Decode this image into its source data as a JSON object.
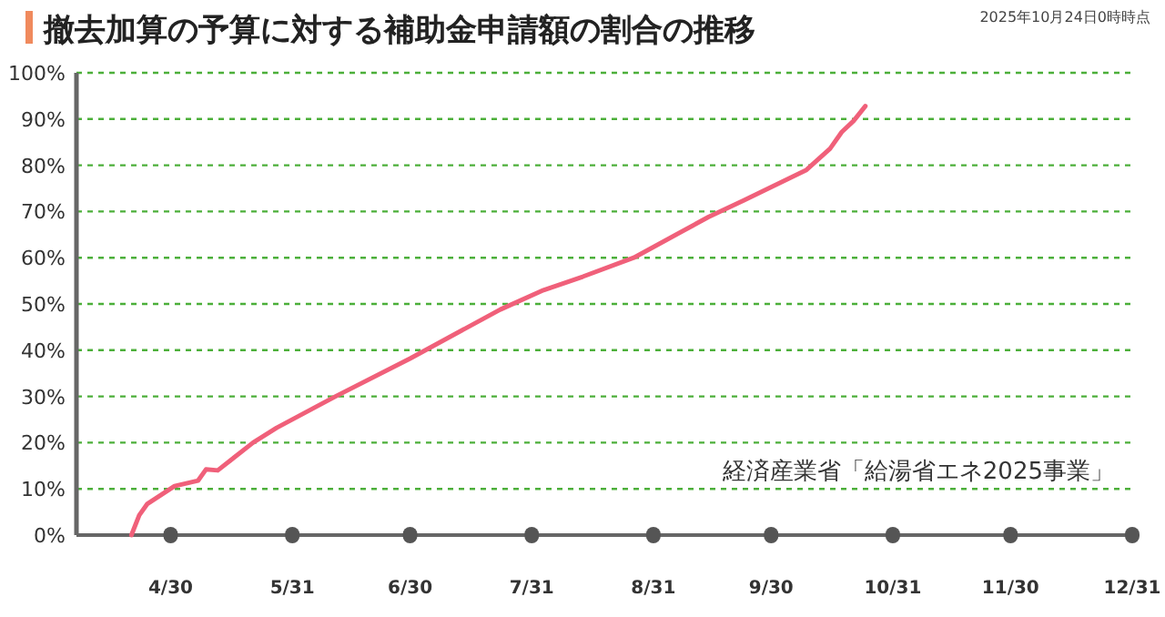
{
  "chart_data": {
    "type": "line",
    "title": "撤去加算の予算に対する補助金申請額の割合の推移",
    "annotations": [
      "2025年10月24日0時時点",
      "経済産業省「給湯省エネ2025事業」"
    ],
    "series": [
      {
        "color": "#f0607a",
        "x": [
          "2025-04-20",
          "2025-04-22",
          "2025-04-24",
          "2025-05-01",
          "2025-05-07",
          "2025-05-09",
          "2025-05-12",
          "2025-05-21",
          "2025-05-27",
          "2025-06-11",
          "2025-06-30",
          "2025-07-23",
          "2025-08-03",
          "2025-08-13",
          "2025-08-26",
          "2025-09-14",
          "2025-09-23",
          "2025-10-09",
          "2025-10-15",
          "2025-10-18",
          "2025-10-21",
          "2025-10-24"
        ],
        "values": [
          0,
          4.3,
          6.7,
          10.6,
          11.8,
          14.2,
          14,
          20,
          23.2,
          30,
          38.2,
          48.8,
          53,
          55.9,
          60,
          68.8,
          72.4,
          79,
          83.6,
          87.2,
          89.6,
          92.8
        ]
      }
    ],
    "xlim": [
      "2025-04-06",
      "2025-12-31"
    ],
    "xticks": [
      {
        "value": "2025-04-30",
        "label": "4/30"
      },
      {
        "value": "2025-05-31",
        "label": "5/31"
      },
      {
        "value": "2025-06-30",
        "label": "6/30"
      },
      {
        "value": "2025-07-31",
        "label": "7/31"
      },
      {
        "value": "2025-08-31",
        "label": "8/31"
      },
      {
        "value": "2025-09-30",
        "label": "9/30"
      },
      {
        "value": "2025-10-31",
        "label": "10/31"
      },
      {
        "value": "2025-11-30",
        "label": "11/30"
      },
      {
        "value": "2025-12-31",
        "label": "12/31"
      }
    ],
    "ylim": [
      0,
      100
    ],
    "yticks": [
      {
        "value": 0,
        "label": "0%"
      },
      {
        "value": 10,
        "label": "10%"
      },
      {
        "value": 20,
        "label": "20%"
      },
      {
        "value": 30,
        "label": "30%"
      },
      {
        "value": 40,
        "label": "40%"
      },
      {
        "value": 50,
        "label": "50%"
      },
      {
        "value": 60,
        "label": "60%"
      },
      {
        "value": 70,
        "label": "70%"
      },
      {
        "value": 80,
        "label": "80%"
      },
      {
        "value": 90,
        "label": "90%"
      },
      {
        "value": 100,
        "label": "100%"
      }
    ],
    "grid": "y",
    "marker": "none",
    "line_style": "solid"
  }
}
